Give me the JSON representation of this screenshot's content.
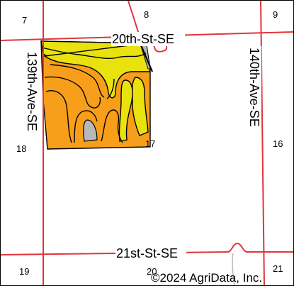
{
  "map": {
    "roads": {
      "north": "20th-St-SE",
      "south": "21st-St-SE",
      "west": "139th-Ave-SE",
      "east": "140th-Ave-SE"
    },
    "sections": [
      "7",
      "8",
      "9",
      "18",
      "17",
      "16",
      "19",
      "20",
      "21"
    ],
    "copyright": "©2024 AgriData, Inc."
  },
  "colors": {
    "road": "#e0353d",
    "soil_orange": "#f79e1b",
    "soil_yellow": "#e9e20f",
    "soil_gray": "#b8b8b8",
    "boundary": "#000000"
  },
  "icons": [
    "road-line",
    "field-polygon"
  ]
}
